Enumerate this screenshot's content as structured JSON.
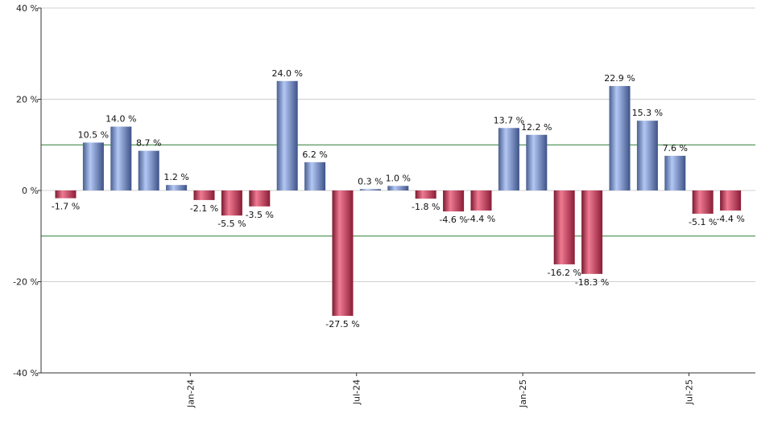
{
  "chart_data": {
    "type": "bar",
    "title": "",
    "xlabel": "",
    "ylabel": "",
    "ylim": [
      -40,
      40
    ],
    "y_ticks": [
      -40,
      -20,
      0,
      20,
      40
    ],
    "y_tick_labels": [
      "-40 %",
      "-20 %",
      "0 %",
      "20 %",
      "40 %"
    ],
    "reference_lines": [
      10,
      -10
    ],
    "grid": true,
    "x_tick_labels": [
      {
        "label": "Jan-24",
        "after_index": 4
      },
      {
        "label": "Jul-24",
        "after_index": 10
      },
      {
        "label": "Jan-25",
        "after_index": 16
      },
      {
        "label": "Jul-25",
        "after_index": 22
      }
    ],
    "values": [
      -1.7,
      10.5,
      14.0,
      8.7,
      1.2,
      -2.1,
      -5.5,
      -3.5,
      24.0,
      6.2,
      -27.5,
      0.3,
      1.0,
      -1.8,
      -4.6,
      -4.4,
      13.7,
      12.2,
      -16.2,
      -18.3,
      22.9,
      15.3,
      7.6,
      -5.1,
      -4.4
    ],
    "labels": [
      "-1.7 %",
      "10.5 %",
      "14.0 %",
      "8.7 %",
      "1.2 %",
      "-2.1 %",
      "-5.5 %",
      "-3.5 %",
      "24.0 %",
      "6.2 %",
      "-27.5 %",
      "0.3 %",
      "1.0 %",
      "-1.8 %",
      "-4.6 %",
      "-4.4 %",
      "13.7 %",
      "12.2 %",
      "-16.2 %",
      "-18.3 %",
      "22.9 %",
      "15.3 %",
      "7.6 %",
      "-5.1 %",
      "-4.4 %"
    ],
    "colors": {
      "positive": "#7a9ae0",
      "negative": "#c4304f",
      "reference_line": "#2e7d32",
      "grid": "#d0d0d0",
      "axis": "#333333"
    }
  }
}
